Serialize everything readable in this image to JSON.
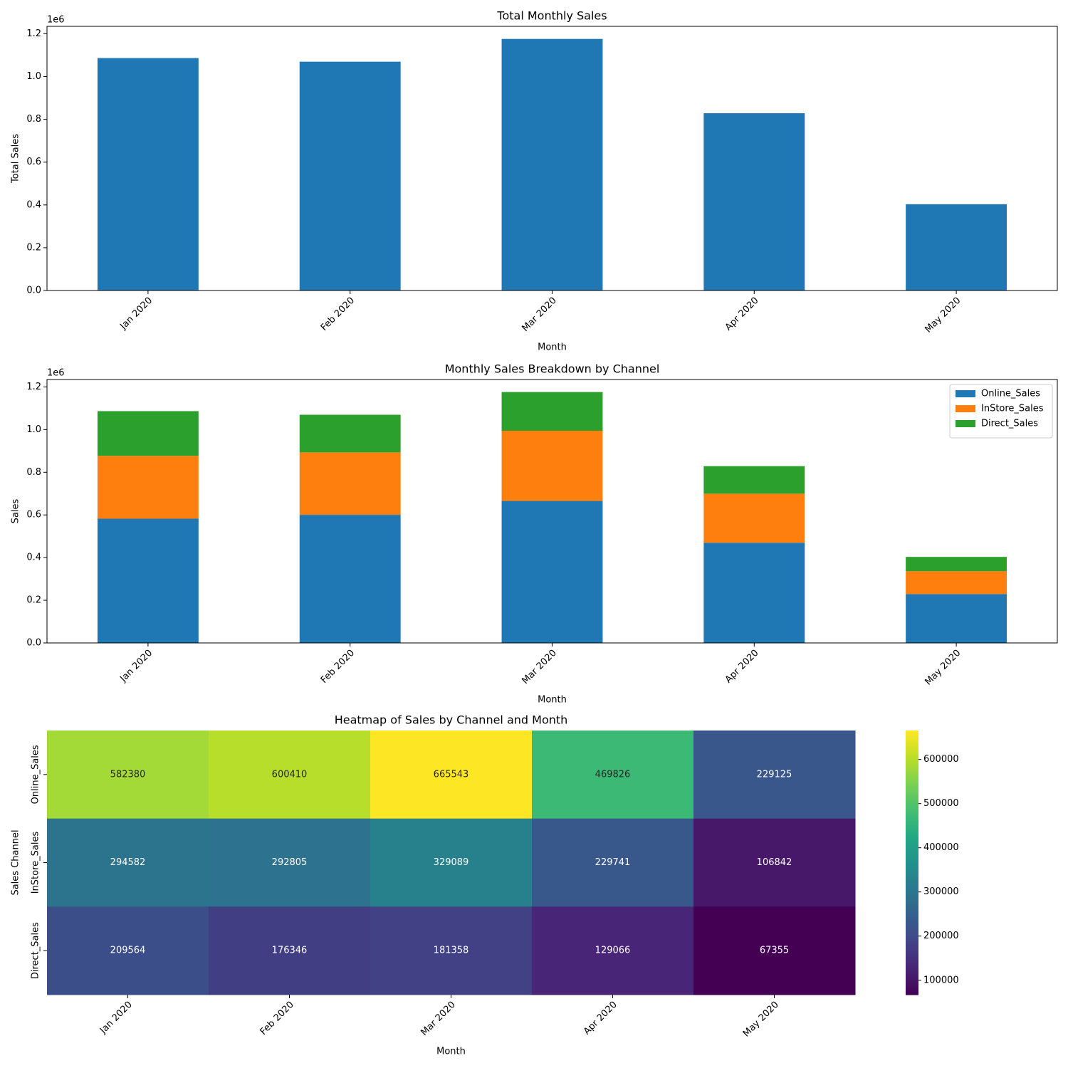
{
  "chart_data": [
    {
      "type": "bar",
      "title": "Total Monthly Sales",
      "xlabel": "Month",
      "ylabel": "Total Sales",
      "y_offset_label": "1e6",
      "categories": [
        "Jan 2020",
        "Feb 2020",
        "Mar 2020",
        "Apr 2020",
        "May 2020"
      ],
      "values": [
        1086526,
        1069561,
        1175990,
        828633,
        403322
      ],
      "color": "#1f77b4",
      "ylim": [
        0,
        1234800
      ],
      "yticks": [
        {
          "value": 0,
          "label": "0.0"
        },
        {
          "value": 200000,
          "label": "0.2"
        },
        {
          "value": 400000,
          "label": "0.4"
        },
        {
          "value": 600000,
          "label": "0.6"
        },
        {
          "value": 800000,
          "label": "0.8"
        },
        {
          "value": 1000000,
          "label": "1.0"
        },
        {
          "value": 1200000,
          "label": "1.2"
        }
      ]
    },
    {
      "type": "stacked_bar",
      "title": "Monthly Sales Breakdown by Channel",
      "xlabel": "Month",
      "ylabel": "Sales",
      "y_offset_label": "1e6",
      "categories": [
        "Jan 2020",
        "Feb 2020",
        "Mar 2020",
        "Apr 2020",
        "May 2020"
      ],
      "series": [
        {
          "name": "Online_Sales",
          "color": "#1f77b4",
          "values": [
            582380,
            600410,
            665543,
            469826,
            229125
          ]
        },
        {
          "name": "InStore_Sales",
          "color": "#ff7f0e",
          "values": [
            294582,
            292805,
            329089,
            229741,
            106842
          ]
        },
        {
          "name": "Direct_Sales",
          "color": "#2ca02c",
          "values": [
            209564,
            176346,
            181358,
            129066,
            67355
          ]
        }
      ],
      "ylim": [
        0,
        1234800
      ],
      "yticks": [
        {
          "value": 0,
          "label": "0.0"
        },
        {
          "value": 200000,
          "label": "0.2"
        },
        {
          "value": 400000,
          "label": "0.4"
        },
        {
          "value": 600000,
          "label": "0.6"
        },
        {
          "value": 800000,
          "label": "0.8"
        },
        {
          "value": 1000000,
          "label": "1.0"
        },
        {
          "value": 1200000,
          "label": "1.2"
        }
      ],
      "legend": "upper right"
    },
    {
      "type": "heatmap",
      "title": "Heatmap of Sales by Channel and Month",
      "xlabel": "Month",
      "ylabel": "Sales Channel",
      "categories": [
        "Jan 2020",
        "Feb 2020",
        "Mar 2020",
        "Apr 2020",
        "May 2020"
      ],
      "rows": [
        "Online_Sales",
        "InStore_Sales",
        "Direct_Sales"
      ],
      "values": [
        [
          582380,
          600410,
          665543,
          469826,
          229125
        ],
        [
          294582,
          292805,
          329089,
          229741,
          106842
        ],
        [
          209564,
          176346,
          181358,
          129066,
          67355
        ]
      ],
      "colormap": "viridis",
      "clim": [
        67355,
        665543
      ],
      "cticks": [
        100000,
        200000,
        300000,
        400000,
        500000,
        600000
      ]
    }
  ]
}
